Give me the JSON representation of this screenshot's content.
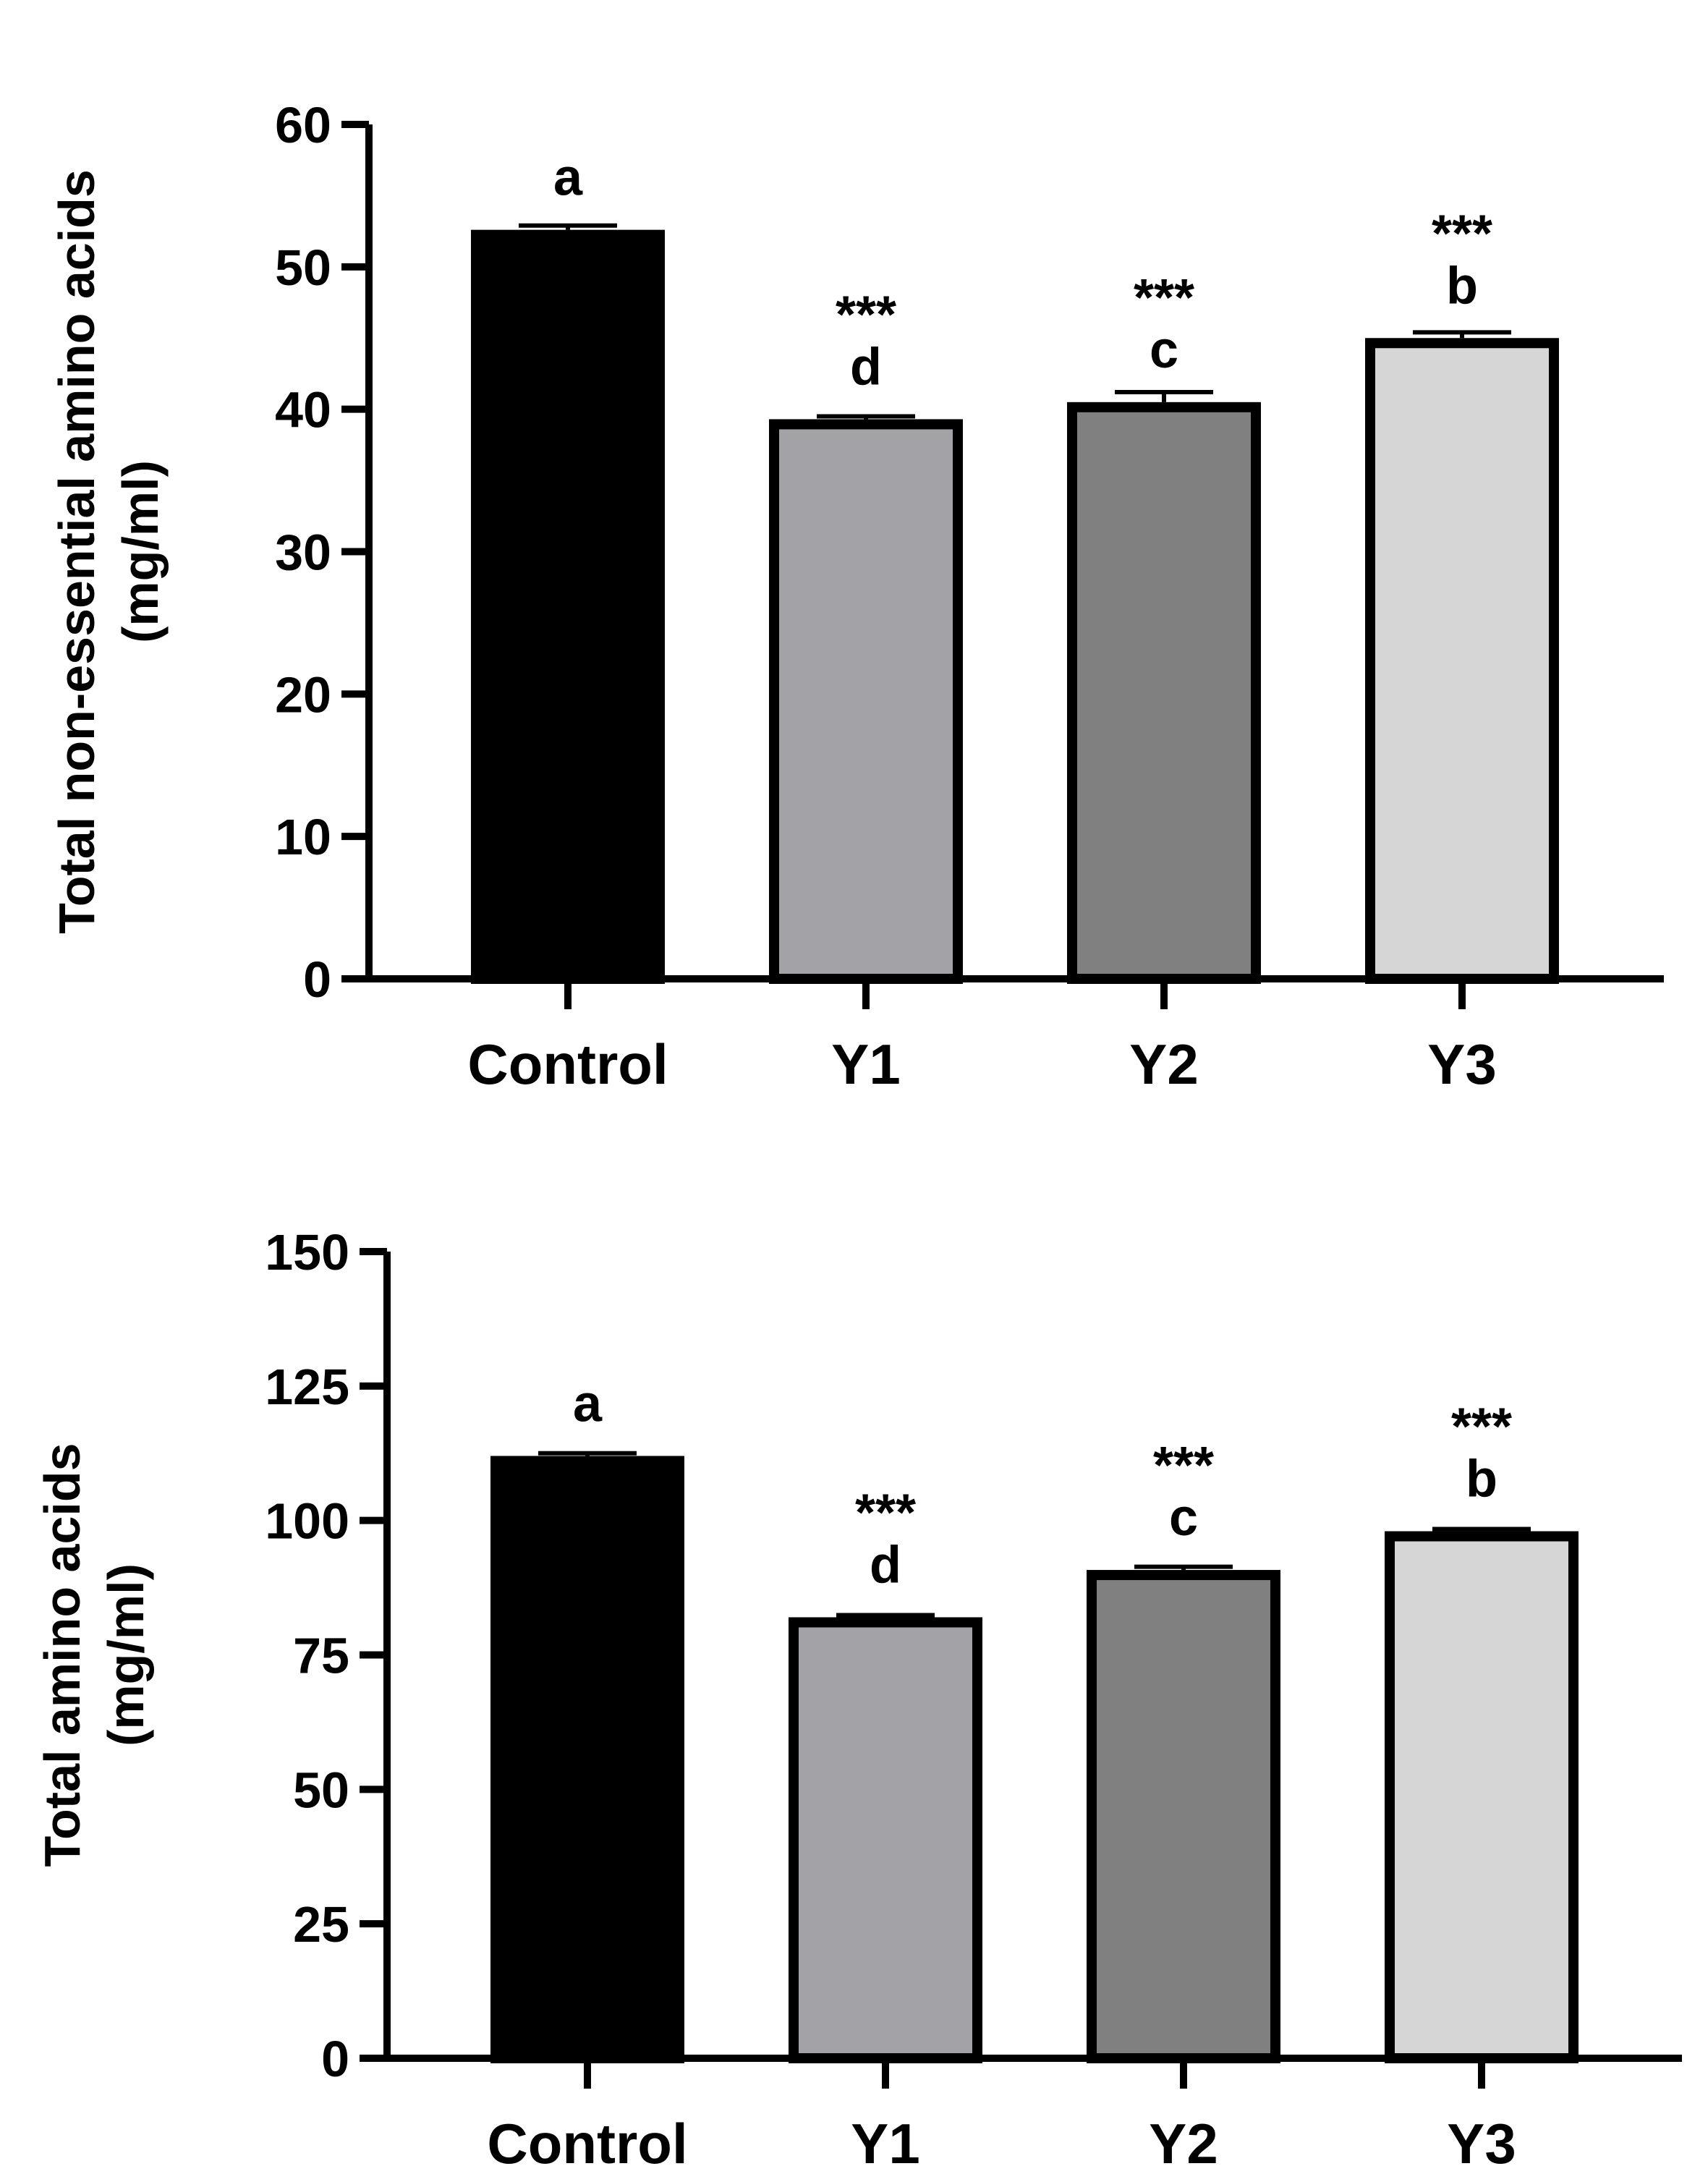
{
  "chart_data": [
    {
      "type": "bar",
      "categories": [
        "Control",
        "Y1",
        "Y2",
        "Y3"
      ],
      "values": [
        52.6,
        39.3,
        40.5,
        45.0
      ],
      "errors": [
        0.3,
        0.2,
        0.7,
        0.4
      ],
      "ylabel_lines": [
        "Total non-essential amino acids",
        "(mg/ml)"
      ],
      "ylim": [
        0,
        60
      ],
      "yticks": [
        0,
        10,
        20,
        30,
        40,
        50,
        60
      ],
      "letters": [
        "a",
        "d",
        "c",
        "b"
      ],
      "stars": [
        "",
        "***",
        "***",
        "***"
      ],
      "colors": [
        "#000000",
        "#a3a3a7",
        "#808080",
        "#d6d6d6"
      ],
      "grid": false
    },
    {
      "type": "bar",
      "categories": [
        "Control",
        "Y1",
        "Y2",
        "Y3"
      ],
      "values": [
        112.0,
        82.0,
        90.8,
        98.0
      ],
      "errors": [
        0.5,
        0.4,
        0.6,
        0.4
      ],
      "ylabel_lines": [
        "Total amino acids",
        "(mg/ml)"
      ],
      "ylim": [
        0,
        150
      ],
      "yticks": [
        0,
        25,
        50,
        75,
        100,
        125,
        150
      ],
      "letters": [
        "a",
        "d",
        "c",
        "b"
      ],
      "stars": [
        "",
        "***",
        "***",
        "***"
      ],
      "colors": [
        "#000000",
        "#a3a3a7",
        "#808080",
        "#d6d6d6"
      ],
      "grid": false
    }
  ]
}
